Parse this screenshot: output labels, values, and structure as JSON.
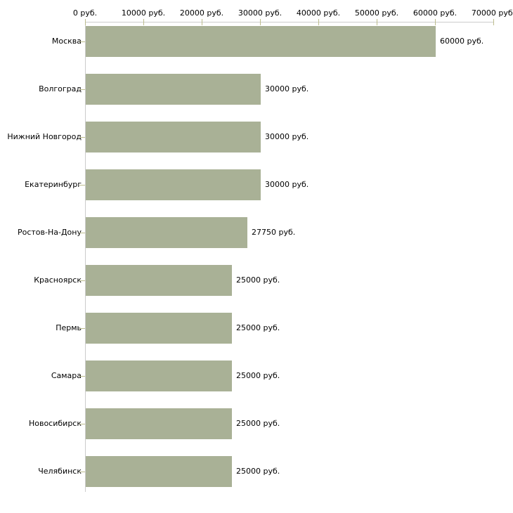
{
  "chart_data": {
    "type": "bar",
    "orientation": "horizontal",
    "title": "",
    "categories": [
      "Москва",
      "Волгоград",
      "Нижний Новгород",
      "Екатеринбург",
      "Ростов-На-Дону",
      "Красноярск",
      "Пермь",
      "Самара",
      "Новосибирск",
      "Челябинск"
    ],
    "values": [
      60000,
      30000,
      30000,
      30000,
      27750,
      25000,
      25000,
      25000,
      25000,
      25000
    ],
    "value_labels": [
      "60000 руб.",
      "30000 руб.",
      "30000 руб.",
      "30000 руб.",
      "27750 руб.",
      "25000 руб.",
      "25000 руб.",
      "25000 руб.",
      "25000 руб.",
      "25000 руб."
    ],
    "x_ticks": [
      {
        "value": 0,
        "label": "0 руб."
      },
      {
        "value": 10000,
        "label": "10000 руб."
      },
      {
        "value": 20000,
        "label": "20000 руб."
      },
      {
        "value": 30000,
        "label": "30000 руб."
      },
      {
        "value": 40000,
        "label": "40000 руб."
      },
      {
        "value": 50000,
        "label": "50000 руб."
      },
      {
        "value": 60000,
        "label": "60000 руб."
      },
      {
        "value": 70000,
        "label": "70000 руб."
      }
    ],
    "xlim": [
      0,
      70000
    ],
    "grid": false,
    "legend": false,
    "xlabel": "",
    "ylabel": "",
    "bar_color": "#a9b196",
    "axis_line_color": "#cccccc",
    "tick_color": "#bdbd8e",
    "text_color": "#000000"
  }
}
